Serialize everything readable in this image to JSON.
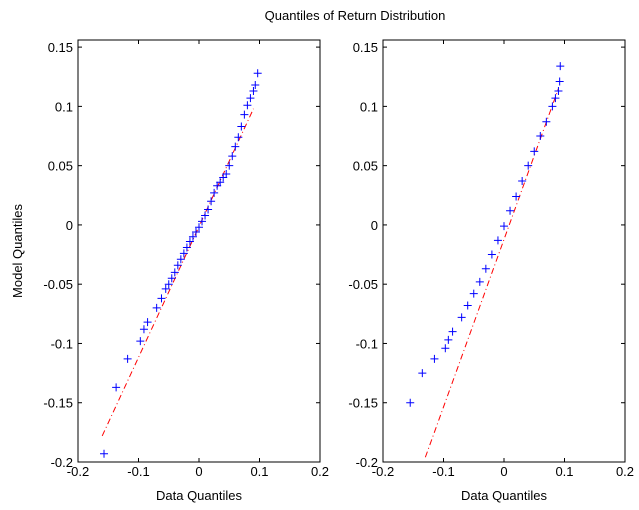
{
  "title": "Quantiles of Return Distribution",
  "chart_data": [
    {
      "type": "scatter",
      "xlabel": "Data Quantiles",
      "ylabel": "Model Quantiles",
      "xlim": [
        -0.2,
        0.2
      ],
      "xticks": [
        -0.2,
        -0.1,
        0,
        0.1,
        0.2
      ],
      "ylim": [
        -0.2,
        0.156
      ],
      "yticks": [
        -0.2,
        -0.15,
        -0.1,
        -0.05,
        0,
        0.05,
        0.1,
        0.15
      ],
      "series": [
        {
          "color": "#0000ff",
          "x": [
            -0.157,
            -0.137,
            -0.118,
            -0.097,
            -0.091,
            -0.085,
            -0.07,
            -0.062,
            -0.055,
            -0.05,
            -0.045,
            -0.04,
            -0.035,
            -0.03,
            -0.025,
            -0.02,
            -0.015,
            -0.01,
            -0.005,
            0,
            0.005,
            0.01,
            0.015,
            0.02,
            0.025,
            0.03,
            0.035,
            0.04,
            0.045,
            0.05,
            0.055,
            0.06,
            0.065,
            0.07,
            0.075,
            0.08,
            0.085,
            0.09,
            0.093,
            0.097
          ],
          "values": [
            -0.193,
            -0.137,
            -0.113,
            -0.098,
            -0.088,
            -0.082,
            -0.07,
            -0.062,
            -0.054,
            -0.05,
            -0.045,
            -0.04,
            -0.034,
            -0.029,
            -0.024,
            -0.019,
            -0.014,
            -0.01,
            -0.006,
            -0.002,
            0.003,
            0.008,
            0.013,
            0.02,
            0.027,
            0.033,
            0.036,
            0.04,
            0.043,
            0.05,
            0.058,
            0.066,
            0.074,
            0.083,
            0.093,
            0.101,
            0.107,
            0.113,
            0.118,
            0.128
          ]
        }
      ],
      "reference": {
        "color": "#ff0000",
        "x": [
          -0.16,
          0.09
        ],
        "values": [
          -0.178,
          0.098
        ]
      }
    },
    {
      "type": "scatter",
      "xlabel": "Data Quantiles",
      "xlim": [
        -0.2,
        0.2
      ],
      "xticks": [
        -0.2,
        -0.1,
        0,
        0.1,
        0.2
      ],
      "ylim": [
        -0.2,
        0.156
      ],
      "yticks": [
        -0.2,
        -0.15,
        -0.1,
        -0.05,
        0,
        0.05,
        0.1,
        0.15
      ],
      "series": [
        {
          "color": "#0000ff",
          "x": [
            -0.155,
            -0.135,
            -0.115,
            -0.097,
            -0.092,
            -0.085,
            -0.07,
            -0.06,
            -0.05,
            -0.04,
            -0.03,
            -0.02,
            -0.01,
            0,
            0.01,
            0.02,
            0.03,
            0.04,
            0.05,
            0.06,
            0.07,
            0.08,
            0.085,
            0.09,
            0.092,
            0.093
          ],
          "values": [
            -0.15,
            -0.125,
            -0.113,
            -0.104,
            -0.097,
            -0.09,
            -0.078,
            -0.068,
            -0.058,
            -0.048,
            -0.037,
            -0.025,
            -0.013,
            -0.001,
            0.012,
            0.024,
            0.037,
            0.05,
            0.062,
            0.075,
            0.087,
            0.1,
            0.107,
            0.113,
            0.121,
            0.134
          ]
        }
      ],
      "reference": {
        "color": "#ff0000",
        "x": [
          -0.13,
          0.09
        ],
        "values": [
          -0.196,
          0.115
        ]
      }
    }
  ]
}
